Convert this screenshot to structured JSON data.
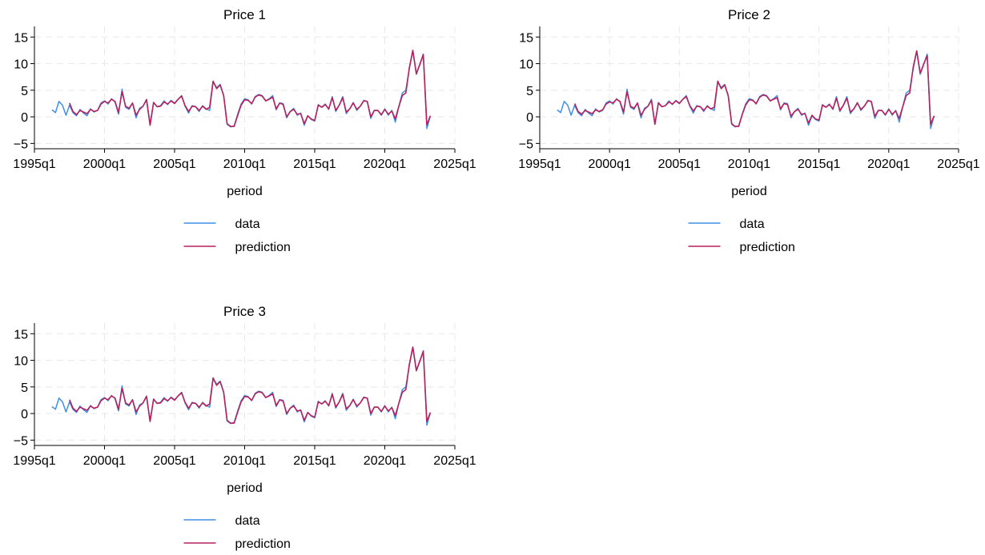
{
  "figure": {
    "colors": {
      "data": "#3f8fe6",
      "prediction": "#b5225e"
    }
  },
  "chart_data": [
    {
      "type": "line",
      "title": "Price 1",
      "xlabel": "period",
      "ylabel": "",
      "xlim": [
        "1995q1",
        "2025q1"
      ],
      "ylim": [
        -6,
        17
      ],
      "xticks": [
        "1995q1",
        "2000q1",
        "2005q1",
        "2010q1",
        "2015q1",
        "2020q1",
        "2025q1"
      ],
      "yticks": [
        -5,
        0,
        5,
        10,
        15
      ],
      "ytick_labels": [
        "−5",
        "0",
        "5",
        "10",
        "15"
      ],
      "grid": true,
      "legend": "below",
      "x": [
        "1996q2",
        "1996q3",
        "1996q4",
        "1997q1",
        "1997q2",
        "1997q3",
        "1997q4",
        "1998q1",
        "1998q2",
        "1998q3",
        "1998q4",
        "1999q1",
        "1999q2",
        "1999q3",
        "1999q4",
        "2000q1",
        "2000q2",
        "2000q3",
        "2000q4",
        "2001q1",
        "2001q2",
        "2001q3",
        "2001q4",
        "2002q1",
        "2002q2",
        "2002q3",
        "2002q4",
        "2003q1",
        "2003q2",
        "2003q3",
        "2003q4",
        "2004q1",
        "2004q2",
        "2004q3",
        "2004q4",
        "2005q1",
        "2005q2",
        "2005q3",
        "2005q4",
        "2006q1",
        "2006q2",
        "2006q3",
        "2006q4",
        "2007q1",
        "2007q2",
        "2007q3",
        "2007q4",
        "2008q1",
        "2008q2",
        "2008q3",
        "2008q4",
        "2009q1",
        "2009q2",
        "2009q3",
        "2009q4",
        "2010q1",
        "2010q2",
        "2010q3",
        "2010q4",
        "2011q1",
        "2011q2",
        "2011q3",
        "2011q4",
        "2012q1",
        "2012q2",
        "2012q3",
        "2012q4",
        "2013q1",
        "2013q2",
        "2013q3",
        "2013q4",
        "2014q1",
        "2014q2",
        "2014q3",
        "2014q4",
        "2015q1",
        "2015q2",
        "2015q3",
        "2015q4",
        "2016q1",
        "2016q2",
        "2016q3",
        "2016q4",
        "2017q1",
        "2017q2",
        "2017q3",
        "2017q4",
        "2018q1",
        "2018q2",
        "2018q3",
        "2018q4",
        "2019q1",
        "2019q2",
        "2019q3",
        "2019q4",
        "2020q1",
        "2020q2",
        "2020q3",
        "2020q4",
        "2021q1",
        "2021q2",
        "2021q3",
        "2021q4",
        "2022q1",
        "2022q2",
        "2022q3",
        "2022q4",
        "2023q1",
        "2023q2"
      ],
      "series": [
        {
          "name": "data",
          "values": [
            1.3,
            0.8,
            2.9,
            2.2,
            0.3,
            2.2,
            0.8,
            0.2,
            1.4,
            0.7,
            0.2,
            1.5,
            0.9,
            1.2,
            2.6,
            3.0,
            2.4,
            3.4,
            2.8,
            0.5,
            5.2,
            1.8,
            1.4,
            2.6,
            -0.2,
            1.6,
            2.0,
            3.3,
            -1.4,
            2.7,
            1.9,
            2.1,
            3.0,
            2.3,
            3.1,
            2.6,
            3.3,
            4.0,
            2.0,
            0.7,
            2.1,
            1.9,
            1.0,
            2.1,
            1.5,
            1.2,
            6.6,
            5.5,
            6.1,
            4.0,
            -1.4,
            -1.9,
            -1.7,
            0.5,
            2.4,
            3.4,
            3.2,
            2.4,
            3.8,
            4.2,
            4.0,
            3.0,
            3.4,
            4.0,
            1.3,
            2.6,
            2.5,
            -0.2,
            1.0,
            1.6,
            0.3,
            0.7,
            -1.6,
            0.2,
            -0.5,
            -0.8,
            2.3,
            1.8,
            2.4,
            1.4,
            3.8,
            1.0,
            2.2,
            3.8,
            0.6,
            1.5,
            2.7,
            1.2,
            2.0,
            3.1,
            2.9,
            -0.3,
            1.2,
            1.2,
            0.3,
            1.5,
            0.3,
            1.2,
            -1.0,
            1.9,
            4.5,
            5.0,
            9.0,
            12.4,
            8.0,
            9.8,
            11.8,
            -2.2,
            0.2
          ]
        },
        {
          "name": "prediction",
          "values": [
            null,
            null,
            null,
            null,
            null,
            2.6,
            1.0,
            0.4,
            1.2,
            0.9,
            0.6,
            1.4,
            1.0,
            1.2,
            2.4,
            2.9,
            2.6,
            3.3,
            2.9,
            0.8,
            4.7,
            2.0,
            1.6,
            2.6,
            0.3,
            1.4,
            2.0,
            3.2,
            -1.6,
            2.7,
            1.9,
            2.0,
            2.8,
            2.4,
            3.0,
            2.5,
            3.3,
            3.9,
            2.1,
            1.0,
            2.0,
            1.9,
            1.2,
            2.0,
            1.4,
            1.8,
            6.7,
            5.3,
            6.0,
            4.0,
            -1.3,
            -1.8,
            -1.8,
            0.3,
            2.2,
            3.2,
            3.1,
            2.5,
            3.7,
            4.1,
            3.9,
            3.0,
            3.3,
            3.7,
            1.5,
            2.6,
            2.3,
            0.0,
            1.0,
            1.4,
            0.5,
            0.6,
            -1.3,
            0.2,
            -0.4,
            -0.7,
            2.2,
            1.8,
            2.3,
            1.5,
            3.6,
            1.2,
            2.2,
            3.6,
            0.9,
            1.5,
            2.6,
            1.4,
            2.0,
            3.0,
            2.9,
            0.0,
            1.2,
            1.2,
            0.4,
            1.4,
            0.5,
            1.1,
            -0.4,
            1.9,
            4.0,
            4.5,
            9.2,
            12.5,
            8.1,
            9.9,
            11.7,
            -1.5,
            0.2
          ]
        }
      ]
    },
    {
      "type": "line",
      "title": "Price 2",
      "xlabel": "period",
      "ylabel": "",
      "xlim": [
        "1995q1",
        "2025q1"
      ],
      "ylim": [
        -6,
        17
      ],
      "xticks": [
        "1995q1",
        "2000q1",
        "2005q1",
        "2010q1",
        "2015q1",
        "2020q1",
        "2025q1"
      ],
      "yticks": [
        -5,
        0,
        5,
        10,
        15
      ],
      "ytick_labels": [
        "−5",
        "0",
        "5",
        "10",
        "15"
      ],
      "grid": true,
      "legend": "below",
      "x": [
        "1996q2",
        "1996q3",
        "1996q4",
        "1997q1",
        "1997q2",
        "1997q3",
        "1997q4",
        "1998q1",
        "1998q2",
        "1998q3",
        "1998q4",
        "1999q1",
        "1999q2",
        "1999q3",
        "1999q4",
        "2000q1",
        "2000q2",
        "2000q3",
        "2000q4",
        "2001q1",
        "2001q2",
        "2001q3",
        "2001q4",
        "2002q1",
        "2002q2",
        "2002q3",
        "2002q4",
        "2003q1",
        "2003q2",
        "2003q3",
        "2003q4",
        "2004q1",
        "2004q2",
        "2004q3",
        "2004q4",
        "2005q1",
        "2005q2",
        "2005q3",
        "2005q4",
        "2006q1",
        "2006q2",
        "2006q3",
        "2006q4",
        "2007q1",
        "2007q2",
        "2007q3",
        "2007q4",
        "2008q1",
        "2008q2",
        "2008q3",
        "2008q4",
        "2009q1",
        "2009q2",
        "2009q3",
        "2009q4",
        "2010q1",
        "2010q2",
        "2010q3",
        "2010q4",
        "2011q1",
        "2011q2",
        "2011q3",
        "2011q4",
        "2012q1",
        "2012q2",
        "2012q3",
        "2012q4",
        "2013q1",
        "2013q2",
        "2013q3",
        "2013q4",
        "2014q1",
        "2014q2",
        "2014q3",
        "2014q4",
        "2015q1",
        "2015q2",
        "2015q3",
        "2015q4",
        "2016q1",
        "2016q2",
        "2016q3",
        "2016q4",
        "2017q1",
        "2017q2",
        "2017q3",
        "2017q4",
        "2018q1",
        "2018q2",
        "2018q3",
        "2018q4",
        "2019q1",
        "2019q2",
        "2019q3",
        "2019q4",
        "2020q1",
        "2020q2",
        "2020q3",
        "2020q4",
        "2021q1",
        "2021q2",
        "2021q3",
        "2021q4",
        "2022q1",
        "2022q2",
        "2022q3",
        "2022q4",
        "2023q1",
        "2023q2"
      ],
      "series": [
        {
          "name": "data",
          "values": [
            1.3,
            0.8,
            2.9,
            2.2,
            0.3,
            2.2,
            0.8,
            0.2,
            1.4,
            0.7,
            0.2,
            1.5,
            0.9,
            1.2,
            2.6,
            3.0,
            2.4,
            3.4,
            2.8,
            0.5,
            5.2,
            1.8,
            1.4,
            2.6,
            -0.2,
            1.6,
            2.0,
            3.3,
            -1.4,
            2.7,
            1.9,
            2.1,
            3.0,
            2.3,
            3.1,
            2.6,
            3.3,
            4.0,
            2.0,
            0.7,
            2.1,
            1.9,
            1.0,
            2.1,
            1.5,
            1.2,
            6.6,
            5.5,
            6.1,
            4.0,
            -1.4,
            -1.9,
            -1.7,
            0.5,
            2.4,
            3.4,
            3.2,
            2.4,
            3.8,
            4.2,
            4.0,
            3.0,
            3.4,
            4.0,
            1.3,
            2.6,
            2.5,
            -0.2,
            1.0,
            1.6,
            0.3,
            0.7,
            -1.6,
            0.2,
            -0.5,
            -0.8,
            2.3,
            1.8,
            2.4,
            1.4,
            3.8,
            1.0,
            2.2,
            3.8,
            0.6,
            1.5,
            2.7,
            1.2,
            2.0,
            3.1,
            2.9,
            -0.3,
            1.2,
            1.2,
            0.3,
            1.5,
            0.3,
            1.2,
            -1.0,
            1.9,
            4.5,
            5.0,
            9.0,
            12.4,
            8.0,
            9.8,
            11.8,
            -2.2,
            0.2
          ]
        },
        {
          "name": "prediction",
          "values": [
            null,
            null,
            null,
            null,
            null,
            2.5,
            1.0,
            0.5,
            1.2,
            0.9,
            0.6,
            1.3,
            1.0,
            1.3,
            2.4,
            2.8,
            2.6,
            3.3,
            2.9,
            0.9,
            4.7,
            2.0,
            1.6,
            2.6,
            0.3,
            1.4,
            2.0,
            3.1,
            -1.4,
            2.6,
            1.9,
            2.1,
            2.8,
            2.4,
            3.0,
            2.5,
            3.3,
            3.8,
            2.1,
            1.1,
            2.0,
            1.9,
            1.2,
            2.0,
            1.5,
            1.8,
            6.7,
            5.3,
            6.0,
            3.9,
            -1.3,
            -1.8,
            -1.8,
            0.4,
            2.2,
            3.2,
            3.1,
            2.5,
            3.7,
            4.1,
            3.9,
            3.0,
            3.3,
            3.6,
            1.5,
            2.5,
            2.3,
            0.1,
            1.0,
            1.4,
            0.5,
            0.6,
            -1.2,
            0.3,
            -0.4,
            -0.6,
            2.2,
            1.8,
            2.3,
            1.5,
            3.5,
            1.2,
            2.2,
            3.5,
            0.9,
            1.5,
            2.6,
            1.4,
            2.0,
            3.0,
            2.9,
            0.1,
            1.2,
            1.2,
            0.4,
            1.4,
            0.5,
            1.1,
            -0.3,
            1.9,
            4.0,
            4.5,
            9.3,
            12.4,
            8.2,
            9.9,
            11.5,
            -1.4,
            0.2
          ]
        }
      ]
    },
    {
      "type": "line",
      "title": "Price 3",
      "xlabel": "period",
      "ylabel": "",
      "xlim": [
        "1995q1",
        "2025q1"
      ],
      "ylim": [
        -6,
        17
      ],
      "xticks": [
        "1995q1",
        "2000q1",
        "2005q1",
        "2010q1",
        "2015q1",
        "2020q1",
        "2025q1"
      ],
      "yticks": [
        -5,
        0,
        5,
        10,
        15
      ],
      "ytick_labels": [
        "−5",
        "0",
        "5",
        "10",
        "15"
      ],
      "grid": true,
      "legend": "below",
      "x": [
        "1996q2",
        "1996q3",
        "1996q4",
        "1997q1",
        "1997q2",
        "1997q3",
        "1997q4",
        "1998q1",
        "1998q2",
        "1998q3",
        "1998q4",
        "1999q1",
        "1999q2",
        "1999q3",
        "1999q4",
        "2000q1",
        "2000q2",
        "2000q3",
        "2000q4",
        "2001q1",
        "2001q2",
        "2001q3",
        "2001q4",
        "2002q1",
        "2002q2",
        "2002q3",
        "2002q4",
        "2003q1",
        "2003q2",
        "2003q3",
        "2003q4",
        "2004q1",
        "2004q2",
        "2004q3",
        "2004q4",
        "2005q1",
        "2005q2",
        "2005q3",
        "2005q4",
        "2006q1",
        "2006q2",
        "2006q3",
        "2006q4",
        "2007q1",
        "2007q2",
        "2007q3",
        "2007q4",
        "2008q1",
        "2008q2",
        "2008q3",
        "2008q4",
        "2009q1",
        "2009q2",
        "2009q3",
        "2009q4",
        "2010q1",
        "2010q2",
        "2010q3",
        "2010q4",
        "2011q1",
        "2011q2",
        "2011q3",
        "2011q4",
        "2012q1",
        "2012q2",
        "2012q3",
        "2012q4",
        "2013q1",
        "2013q2",
        "2013q3",
        "2013q4",
        "2014q1",
        "2014q2",
        "2014q3",
        "2014q4",
        "2015q1",
        "2015q2",
        "2015q3",
        "2015q4",
        "2016q1",
        "2016q2",
        "2016q3",
        "2016q4",
        "2017q1",
        "2017q2",
        "2017q3",
        "2017q4",
        "2018q1",
        "2018q2",
        "2018q3",
        "2018q4",
        "2019q1",
        "2019q2",
        "2019q3",
        "2019q4",
        "2020q1",
        "2020q2",
        "2020q3",
        "2020q4",
        "2021q1",
        "2021q2",
        "2021q3",
        "2021q4",
        "2022q1",
        "2022q2",
        "2022q3",
        "2022q4",
        "2023q1",
        "2023q2"
      ],
      "series": [
        {
          "name": "data",
          "values": [
            1.3,
            0.8,
            2.9,
            2.2,
            0.3,
            2.2,
            0.8,
            0.2,
            1.4,
            0.7,
            0.2,
            1.5,
            0.9,
            1.2,
            2.6,
            3.0,
            2.4,
            3.4,
            2.8,
            0.5,
            5.2,
            1.8,
            1.4,
            2.6,
            -0.2,
            1.6,
            2.0,
            3.3,
            -1.4,
            2.7,
            1.9,
            2.1,
            3.0,
            2.3,
            3.1,
            2.6,
            3.3,
            4.0,
            2.0,
            0.7,
            2.1,
            1.9,
            1.0,
            2.1,
            1.5,
            1.2,
            6.6,
            5.5,
            6.1,
            4.0,
            -1.4,
            -1.9,
            -1.7,
            0.5,
            2.4,
            3.4,
            3.2,
            2.4,
            3.8,
            4.2,
            4.0,
            3.0,
            3.4,
            4.0,
            1.3,
            2.6,
            2.5,
            -0.2,
            1.0,
            1.6,
            0.3,
            0.7,
            -1.6,
            0.2,
            -0.5,
            -0.8,
            2.3,
            1.8,
            2.4,
            1.4,
            3.8,
            1.0,
            2.2,
            3.8,
            0.6,
            1.5,
            2.7,
            1.2,
            2.0,
            3.1,
            2.9,
            -0.3,
            1.2,
            1.2,
            0.3,
            1.5,
            0.3,
            1.2,
            -1.0,
            1.9,
            4.5,
            5.0,
            9.0,
            12.4,
            8.0,
            9.8,
            11.8,
            -2.2,
            0.2
          ]
        },
        {
          "name": "prediction",
          "values": [
            null,
            null,
            null,
            null,
            null,
            2.6,
            1.0,
            0.4,
            1.2,
            0.9,
            0.6,
            1.4,
            1.0,
            1.2,
            2.4,
            2.9,
            2.6,
            3.3,
            2.9,
            0.8,
            4.7,
            2.0,
            1.6,
            2.6,
            0.3,
            1.4,
            2.0,
            3.2,
            -1.5,
            2.7,
            1.9,
            2.0,
            2.8,
            2.4,
            3.0,
            2.5,
            3.3,
            3.9,
            2.1,
            1.0,
            2.0,
            1.9,
            1.2,
            2.0,
            1.4,
            1.8,
            6.7,
            5.3,
            6.0,
            4.0,
            -1.3,
            -1.8,
            -1.8,
            0.3,
            2.2,
            3.2,
            3.1,
            2.5,
            3.7,
            4.1,
            3.9,
            3.0,
            3.3,
            3.7,
            1.5,
            2.6,
            2.3,
            0.0,
            1.0,
            1.4,
            0.5,
            0.6,
            -1.3,
            0.2,
            -0.4,
            -0.7,
            2.2,
            1.8,
            2.3,
            1.5,
            3.6,
            1.2,
            2.2,
            3.6,
            0.9,
            1.5,
            2.6,
            1.4,
            2.0,
            3.0,
            2.9,
            0.0,
            1.2,
            1.2,
            0.4,
            1.4,
            0.5,
            1.1,
            -0.4,
            1.9,
            4.0,
            4.5,
            9.2,
            12.5,
            8.1,
            9.9,
            11.7,
            -1.5,
            0.2
          ]
        }
      ]
    }
  ]
}
